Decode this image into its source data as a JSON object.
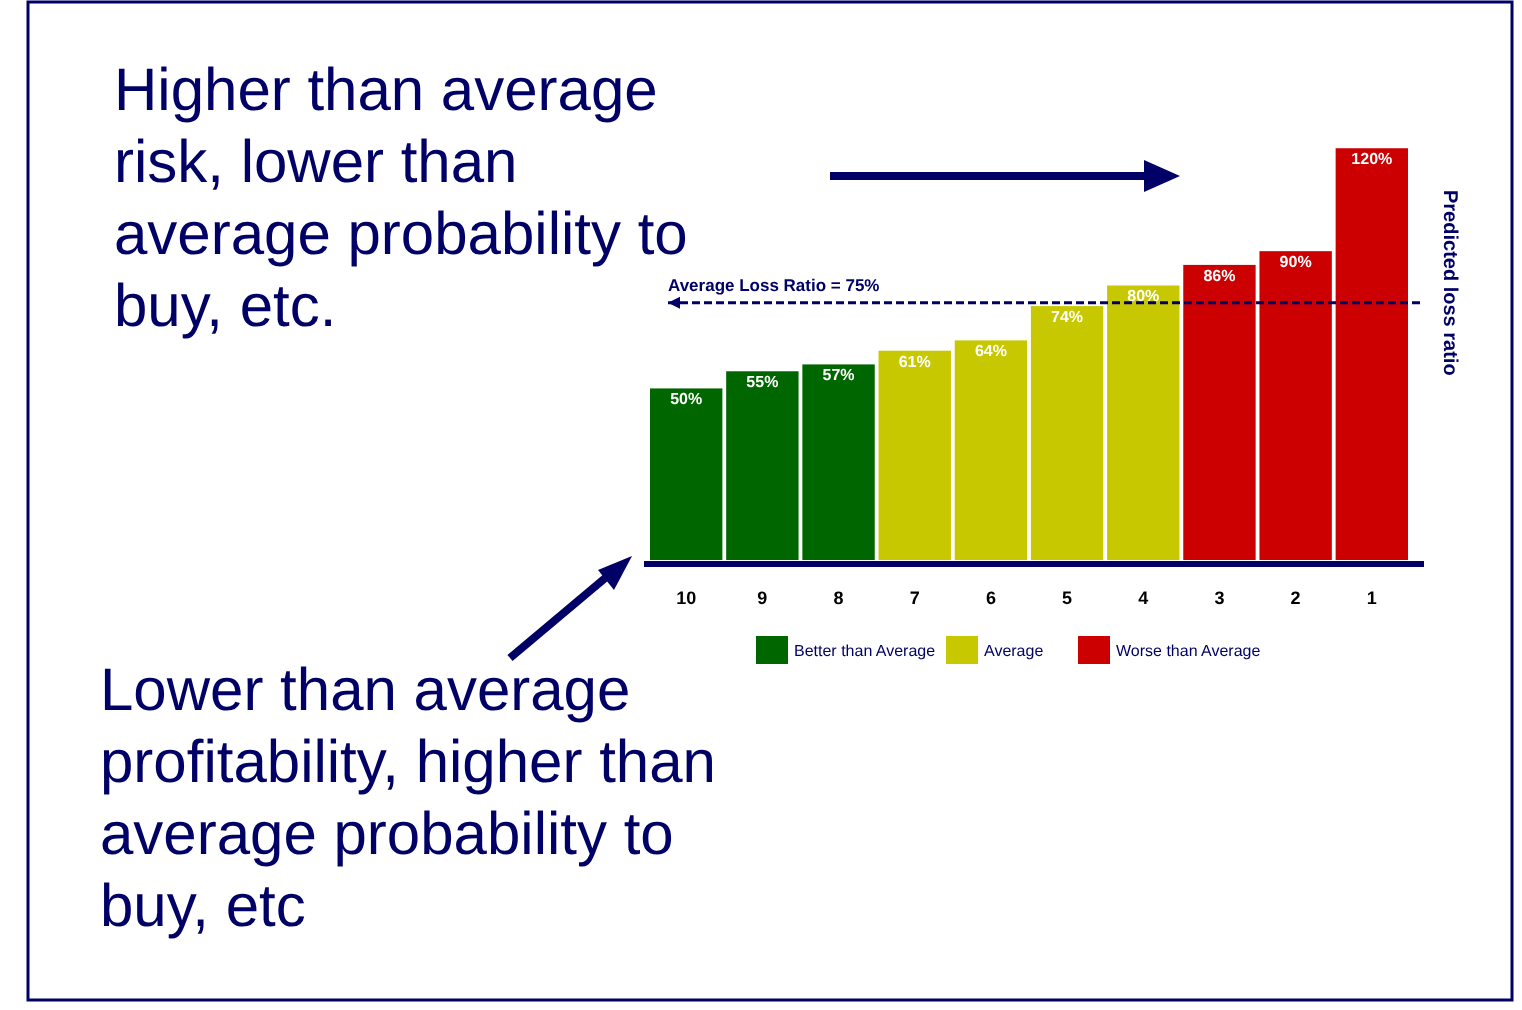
{
  "chart_data": {
    "type": "bar",
    "stacked": true,
    "ylabel": "Predicted loss ratio",
    "categories": [
      "10",
      "9",
      "8",
      "7",
      "6",
      "5",
      "4",
      "3",
      "2",
      "1"
    ],
    "series": [
      {
        "name": "Better than Average",
        "color": "#006600",
        "values": [
          50,
          55,
          57,
          null,
          null,
          null,
          null,
          null,
          null,
          null
        ],
        "value_labels": [
          "50%",
          "55%",
          "57%",
          null,
          null,
          null,
          null,
          null,
          null,
          null
        ]
      },
      {
        "name": "Average",
        "color": "#c8c800",
        "values": [
          null,
          null,
          null,
          61,
          64,
          74,
          80,
          null,
          null,
          null
        ],
        "value_labels": [
          null,
          null,
          null,
          "61%",
          "64%",
          "74%",
          "80%",
          null,
          null,
          null
        ]
      },
      {
        "name": "Worse than Average",
        "color": "#cc0000",
        "values": [
          null,
          null,
          null,
          null,
          null,
          null,
          null,
          86,
          90,
          120
        ],
        "value_labels": [
          null,
          null,
          null,
          null,
          null,
          null,
          null,
          "86%",
          "90%",
          "120%"
        ]
      }
    ],
    "tick_labels": "x",
    "legend": "bottom",
    "ref_lines": [
      {
        "axis": "y",
        "value": 75,
        "label": "Average Loss Ratio = 75%",
        "color": "#000066",
        "line_style": "dashed"
      }
    ],
    "annotations": [
      "Higher than average\nrisk, lower than\naverage probability to\nbuy, etc.",
      "Lower than average\nprofitability, higher than\naverage probability to\nbuy, etc"
    ]
  }
}
